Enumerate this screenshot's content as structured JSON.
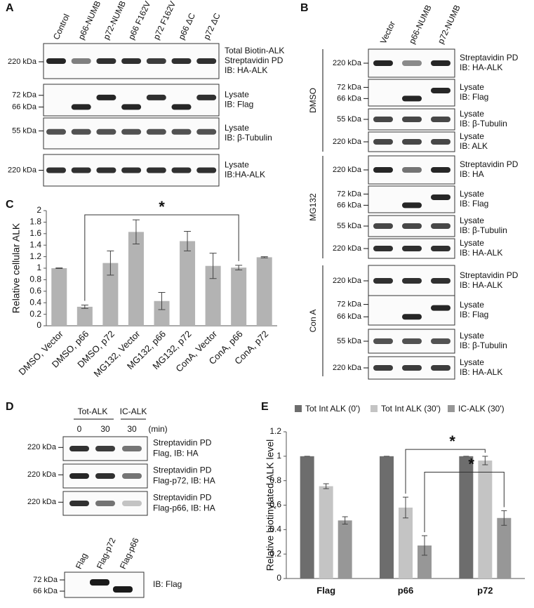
{
  "panels": {
    "A": {
      "label": "A",
      "columns": [
        "Control",
        "p66-NUMB",
        "p72-NUMB",
        "p66 F162V",
        "p72 F162V",
        "p66 ΔC",
        "p72 ΔC"
      ],
      "blots": [
        {
          "markers": [
            "220 kDa"
          ],
          "caption": [
            "Total Biotin-ALK",
            "Streptavidin PD",
            "IB: HA-ALK"
          ]
        },
        {
          "markers": [
            "72 kDa",
            "66 kDa"
          ],
          "caption": [
            "Lysate",
            "IB: Flag"
          ]
        },
        {
          "markers": [
            "55 kDa"
          ],
          "caption": [
            "Lysate",
            "IB: β-Tubulin"
          ]
        },
        {
          "markers": [
            "220 kDa"
          ],
          "caption": [
            "Lysate",
            "IB:HA-ALK"
          ]
        }
      ]
    },
    "B": {
      "label": "B",
      "columns": [
        "Vector",
        "p66-NUMB",
        "p72-NUMB"
      ],
      "groups": [
        {
          "name": "DMSO",
          "blots": [
            {
              "markers": [
                "220 kDa"
              ],
              "caption": [
                "Streptavidin PD",
                "IB: HA-ALK"
              ]
            },
            {
              "markers": [
                "72 kDa",
                "66 kDa"
              ],
              "caption": [
                "Lysate",
                "IB: Flag"
              ]
            },
            {
              "markers": [
                "55 kDa"
              ],
              "caption": [
                "Lysate",
                "IB: β-Tubulin"
              ]
            },
            {
              "markers": [
                "220 kDa"
              ],
              "caption": [
                "Lysate",
                "IB: ALK"
              ]
            }
          ]
        },
        {
          "name": "MG132",
          "blots": [
            {
              "markers": [
                "220 kDa"
              ],
              "caption": [
                "Streptavidin PD",
                "IB: HA"
              ]
            },
            {
              "markers": [
                "72 kDa",
                "66 kDa"
              ],
              "caption": [
                "Lysate",
                "IB: Flag"
              ]
            },
            {
              "markers": [
                "55 kDa"
              ],
              "caption": [
                "Lysate",
                "IB: β-Tubulin"
              ]
            },
            {
              "markers": [
                "220 kDa"
              ],
              "caption": [
                "Lysate",
                "IB: HA-ALK"
              ]
            }
          ]
        },
        {
          "name": "Con A",
          "blots": [
            {
              "markers": [
                "220 kDa"
              ],
              "caption": [
                "Streptavidin PD",
                "IB: HA-ALK"
              ]
            },
            {
              "markers": [
                "72 kDa",
                "66 kDa"
              ],
              "caption": [
                "Lysate",
                "IB: Flag"
              ]
            },
            {
              "markers": [
                "55 kDa"
              ],
              "caption": [
                "Lysate",
                "IB: β-Tubulin"
              ]
            },
            {
              "markers": [
                "220 kDa"
              ],
              "caption": [
                "Lysate",
                "IB: HA-ALK"
              ]
            }
          ]
        }
      ]
    },
    "D": {
      "label": "D",
      "headers": [
        "Tot-ALK",
        "IC-ALK"
      ],
      "times": [
        "0",
        "30",
        "30",
        "(min)"
      ],
      "blots": [
        {
          "markers": [
            "220 kDa"
          ],
          "caption": [
            "Streptavidin PD",
            "Flag, IB: HA"
          ]
        },
        {
          "markers": [
            "220 kDa"
          ],
          "caption": [
            "Streptavidin PD",
            "Flag-p72, IB: HA"
          ]
        },
        {
          "markers": [
            "220 kDa"
          ],
          "caption": [
            "Streptavidin PD",
            "Flag-p66, IB: HA"
          ]
        }
      ],
      "lysate": {
        "columns": [
          "Flag",
          "Flag-p72",
          "Flag-p66"
        ],
        "markers": [
          "72 kDa",
          "66 kDa"
        ],
        "caption": [
          "IB: Flag"
        ]
      }
    }
  },
  "chart_data": [
    {
      "type": "bar",
      "label": "C",
      "y_label": "Relative cellular ALK",
      "categories": [
        "DMSO, Vector",
        "DMSO, p66",
        "DMSO, p72",
        "MG132, Vector",
        "MG132, p66",
        "MG132, p72",
        "ConA, Vector",
        "ConA, p66",
        "ConA, p72"
      ],
      "values": [
        1,
        0.33,
        1.09,
        1.63,
        0.43,
        1.47,
        1.04,
        1.01,
        1.19
      ],
      "errors": [
        0.005,
        0.03,
        0.21,
        0.21,
        0.15,
        0.17,
        0.22,
        0.04,
        0.01
      ],
      "color": "#b3b3b3",
      "ylim": [
        0,
        2
      ],
      "yticks": [
        0,
        0.2,
        0.4,
        0.6,
        0.8,
        1,
        1.2,
        1.4,
        1.6,
        1.8,
        2
      ],
      "annotations": [
        "*"
      ]
    },
    {
      "type": "grouped-bar",
      "label": "E",
      "y_label": "Relative biotinylated ALK level",
      "categories": [
        "Flag",
        "p66",
        "p72"
      ],
      "series": [
        {
          "name": "Tot Int ALK (0')",
          "color": "#6d6d6d",
          "values": [
            1,
            1,
            1
          ],
          "errors": [
            0,
            0,
            0
          ]
        },
        {
          "name": "Tot Int ALK (30')",
          "color": "#c4c4c4",
          "values": [
            0.755,
            0.58,
            0.965
          ],
          "errors": [
            0.02,
            0.085,
            0.035
          ]
        },
        {
          "name": "IC-ALK (30')",
          "color": "#979797",
          "values": [
            0.475,
            0.27,
            0.495
          ],
          "errors": [
            0.03,
            0.08,
            0.06
          ]
        }
      ],
      "ylim": [
        0,
        1.2
      ],
      "yticks": [
        0,
        0.2,
        0.4,
        0.6,
        0.8,
        1,
        1.2
      ],
      "annotations": [
        "*",
        "*"
      ]
    }
  ]
}
